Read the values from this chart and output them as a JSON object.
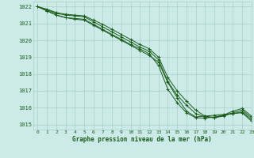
{
  "background_color": "#cceae8",
  "grid_color": "#aacfcc",
  "line_color": "#1a5c1a",
  "marker_color": "#1a5c1a",
  "xlabel": "Graphe pression niveau de la mer (hPa)",
  "xlabel_color": "#1a5c1a",
  "ylabel_ticks": [
    1015,
    1016,
    1017,
    1018,
    1019,
    1020,
    1021,
    1022
  ],
  "xlim": [
    -0.5,
    23
  ],
  "ylim": [
    1014.7,
    1022.3
  ],
  "x_hours": [
    0,
    1,
    2,
    3,
    4,
    5,
    6,
    7,
    8,
    9,
    10,
    11,
    12,
    13,
    14,
    15,
    16,
    17,
    18,
    19,
    20,
    21,
    22,
    23
  ],
  "series": [
    [
      1022.0,
      1021.75,
      1021.5,
      1021.35,
      1021.25,
      1021.2,
      1020.9,
      1020.6,
      1020.3,
      1020.0,
      1019.7,
      1019.4,
      1019.1,
      1018.7,
      1017.5,
      1016.6,
      1015.8,
      1015.45,
      1015.5,
      1015.55,
      1015.6,
      1015.65,
      1015.7,
      1015.2
    ],
    [
      1022.0,
      1021.75,
      1021.5,
      1021.35,
      1021.3,
      1021.25,
      1020.95,
      1020.65,
      1020.35,
      1020.05,
      1019.75,
      1019.5,
      1019.2,
      1018.5,
      1017.1,
      1016.3,
      1015.7,
      1015.4,
      1015.38,
      1015.45,
      1015.55,
      1015.65,
      1015.75,
      1015.3
    ],
    [
      1022.0,
      1021.8,
      1021.6,
      1021.5,
      1021.45,
      1021.4,
      1021.1,
      1020.8,
      1020.5,
      1020.2,
      1019.9,
      1019.6,
      1019.35,
      1018.85,
      1017.55,
      1016.75,
      1016.15,
      1015.65,
      1015.45,
      1015.4,
      1015.5,
      1015.7,
      1015.85,
      1015.4
    ],
    [
      1022.0,
      1021.85,
      1021.65,
      1021.55,
      1021.5,
      1021.45,
      1021.2,
      1020.95,
      1020.65,
      1020.35,
      1020.05,
      1019.75,
      1019.5,
      1019.0,
      1017.8,
      1017.0,
      1016.4,
      1015.85,
      1015.5,
      1015.42,
      1015.55,
      1015.8,
      1015.95,
      1015.5
    ]
  ]
}
